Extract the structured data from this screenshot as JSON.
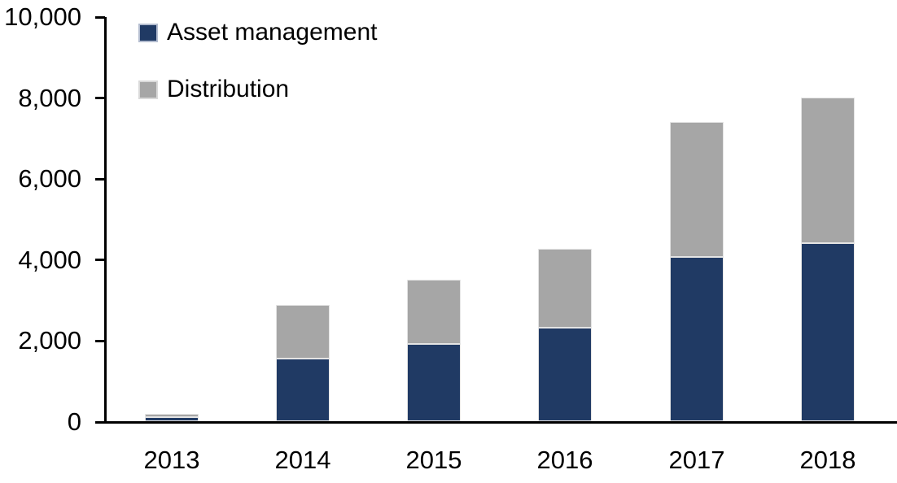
{
  "chart_data": {
    "type": "bar",
    "stacked": true,
    "title": "",
    "xlabel": "",
    "ylabel": "",
    "categories": [
      "2013",
      "2014",
      "2015",
      "2016",
      "2017",
      "2018"
    ],
    "series": [
      {
        "name": "Asset management",
        "color": "#203a64",
        "values": [
          100,
          1550,
          1900,
          2320,
          4050,
          4400
        ]
      },
      {
        "name": "Distribution",
        "color": "#a6a6a6",
        "values": [
          90,
          1330,
          1600,
          1930,
          3350,
          3600
        ]
      }
    ],
    "totals": [
      190,
      2880,
      3500,
      4250,
      7400,
      8000
    ],
    "ylim": [
      0,
      10000
    ],
    "ytick_interval": 2000,
    "ytick_values": [
      0,
      2000,
      4000,
      6000,
      8000,
      10000
    ],
    "ytick_labels": [
      "0",
      "2,000",
      "4,000",
      "6,000",
      "8,000",
      "10,000"
    ],
    "grid": false,
    "legend_position": "top-left-inside"
  },
  "colors": {
    "background": "#ffffff",
    "axis": "#000000",
    "text": "#000000",
    "segment_border": "#e4e4e4",
    "legend_swatch_border_asset": "#b3bccf",
    "legend_swatch_border_distribution": "#d9d9d9"
  }
}
